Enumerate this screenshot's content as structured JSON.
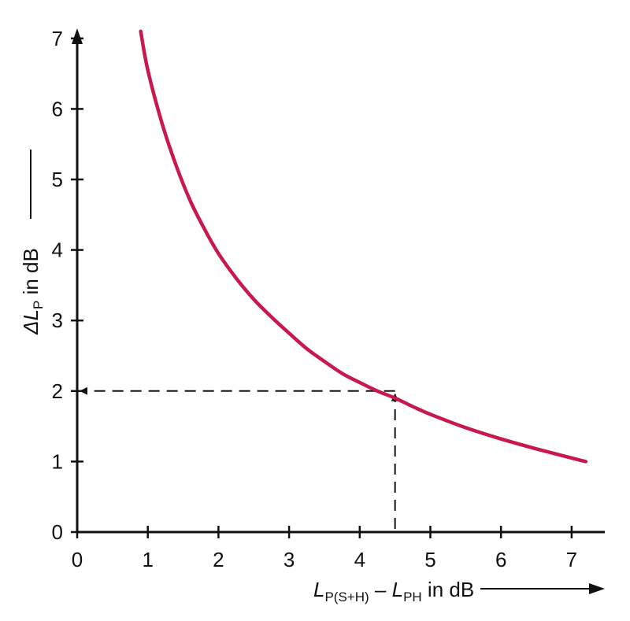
{
  "chart_data": {
    "type": "line",
    "title": "",
    "xlabel": {
      "main": "L",
      "sub1": "P(S+H)",
      "mid": " – ",
      "main2": "L",
      "sub2": "PH",
      "tail": " in dB"
    },
    "ylabel": {
      "prefix": "ΔL",
      "sub": "P",
      "tail": " in dB"
    },
    "xlim": [
      0,
      7.5
    ],
    "ylim": [
      0,
      7.2
    ],
    "xticks": [
      "0",
      "1",
      "2",
      "3",
      "4",
      "5",
      "6",
      "7"
    ],
    "yticks": [
      "0",
      "1",
      "2",
      "3",
      "4",
      "5",
      "6",
      "7"
    ],
    "grid": false,
    "series": [
      {
        "color": "#c8194f",
        "x": [
          0.9,
          1.0,
          1.2,
          1.4,
          1.6,
          1.8,
          2.0,
          2.25,
          2.5,
          2.75,
          3.0,
          3.25,
          3.5,
          3.75,
          4.0,
          4.25,
          4.5,
          4.75,
          5.0,
          5.5,
          6.0,
          6.5,
          7.0,
          7.2
        ],
        "y": [
          7.1,
          6.55,
          5.8,
          5.2,
          4.7,
          4.3,
          3.95,
          3.6,
          3.3,
          3.05,
          2.82,
          2.6,
          2.42,
          2.25,
          2.12,
          2.0,
          1.9,
          1.78,
          1.67,
          1.48,
          1.32,
          1.18,
          1.05,
          1.0
        ]
      }
    ],
    "annotation": {
      "x": 4.5,
      "y": 2.0,
      "style": "dashed-arrows"
    }
  }
}
